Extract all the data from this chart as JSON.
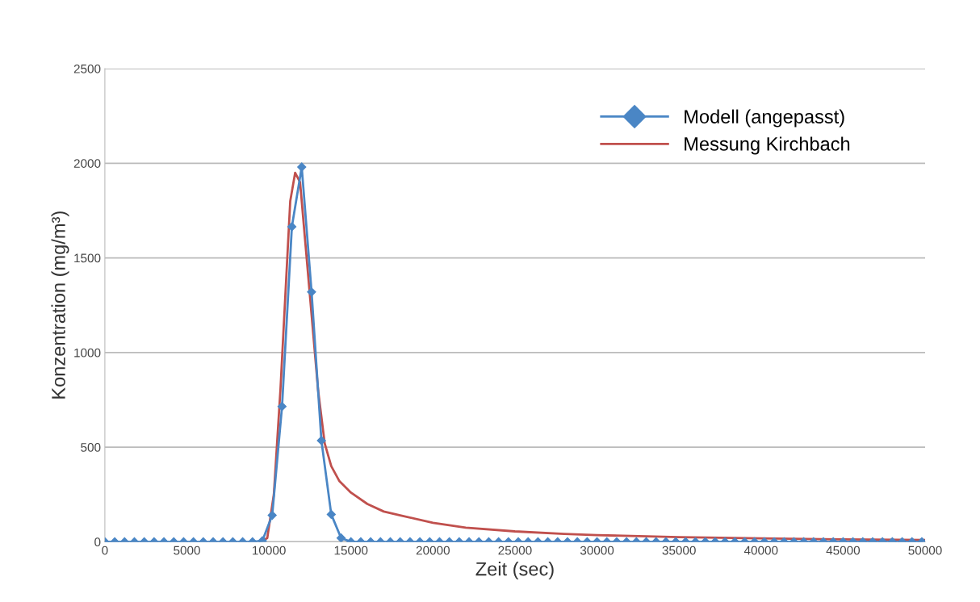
{
  "chart_data": {
    "type": "line",
    "xlabel": "Zeit (sec)",
    "ylabel": "Konzentration (mg/m³)",
    "xlim": [
      0,
      50000
    ],
    "xticks": [
      0,
      5000,
      10000,
      15000,
      20000,
      25000,
      30000,
      35000,
      40000,
      45000,
      50000
    ],
    "ylim": [
      0,
      2500
    ],
    "yticks": [
      0,
      500,
      1000,
      1500,
      2000,
      2500
    ],
    "grid": "y",
    "legend": "top right",
    "series": [
      {
        "name": "Modell (angepasst)",
        "color": "#4a86c5",
        "marker": "diamond",
        "x": [
          0,
          600,
          1200,
          1800,
          2400,
          3000,
          3600,
          4200,
          4800,
          5400,
          6000,
          6600,
          7200,
          7800,
          8400,
          9000,
          9600,
          10200,
          10800,
          11400,
          12000,
          12600,
          13200,
          13800,
          14400,
          15000,
          15600,
          16200,
          16800,
          17400,
          18000,
          18600,
          19200,
          19800,
          20400,
          21000,
          21600,
          22200,
          22800,
          23400,
          24000,
          24600,
          25200,
          25800,
          26400,
          27000,
          27600,
          28200,
          28800,
          29400,
          30000,
          30600,
          31200,
          31800,
          32400,
          33000,
          33600,
          34200,
          34800,
          35400,
          36000,
          36600,
          37200,
          37800,
          38400,
          39000,
          39600,
          40200,
          40800,
          41400,
          42000,
          42600,
          43200,
          43800,
          44400,
          45000,
          45600,
          46200,
          46800,
          47400,
          48000,
          48600,
          49200,
          49800
        ],
        "values": [
          0,
          0,
          0,
          0,
          0,
          0,
          0,
          0,
          0,
          0,
          0,
          0,
          0,
          0,
          0,
          0,
          5,
          140,
          715,
          1665,
          1980,
          1320,
          535,
          145,
          20,
          0,
          0,
          0,
          0,
          0,
          0,
          0,
          0,
          0,
          0,
          0,
          0,
          0,
          0,
          0,
          0,
          0,
          0,
          0,
          0,
          0,
          0,
          0,
          0,
          0,
          0,
          0,
          0,
          0,
          0,
          0,
          0,
          0,
          0,
          0,
          0,
          0,
          0,
          0,
          0,
          0,
          0,
          0,
          0,
          0,
          0,
          0,
          0,
          0,
          0,
          0,
          0,
          0,
          0,
          0,
          0,
          0,
          0,
          0
        ]
      },
      {
        "name": "Messung Kirchbach",
        "color": "#c0504d",
        "marker": "none",
        "x": [
          0,
          9500,
          9900,
          10300,
          10700,
          11000,
          11300,
          11600,
          11900,
          12200,
          12600,
          13000,
          13400,
          13800,
          14300,
          15000,
          16000,
          17000,
          18000,
          20000,
          22000,
          25000,
          28000,
          30000,
          35000,
          40000,
          45000,
          50000
        ],
        "values": [
          0,
          0,
          20,
          250,
          800,
          1300,
          1800,
          1950,
          1900,
          1600,
          1200,
          800,
          520,
          400,
          320,
          260,
          200,
          160,
          140,
          100,
          75,
          55,
          42,
          35,
          25,
          18,
          13,
          10
        ]
      }
    ]
  }
}
